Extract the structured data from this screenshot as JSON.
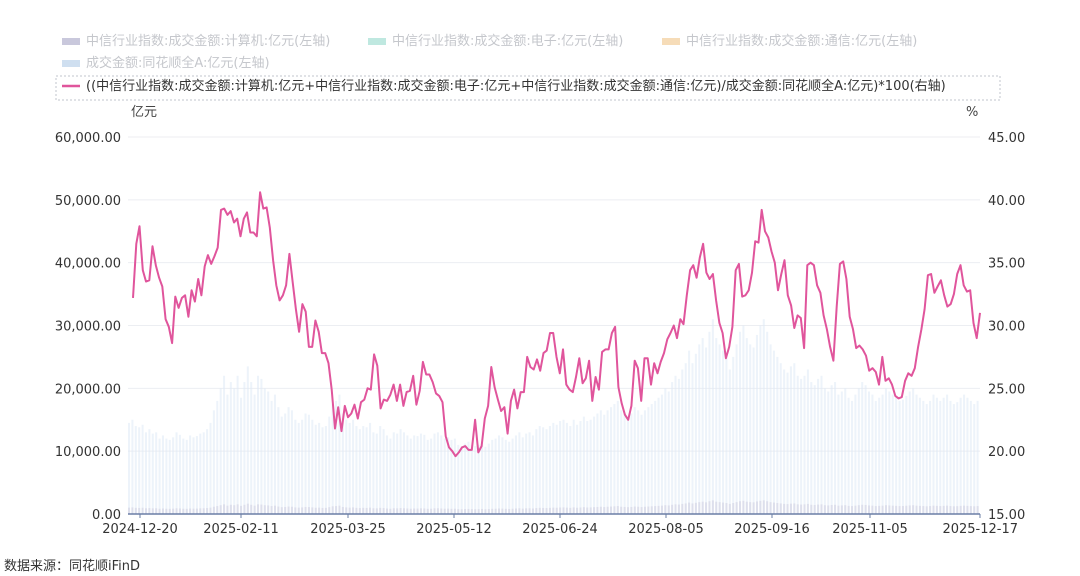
{
  "chart_data": {
    "type": "line",
    "legend": [
      {
        "label": "中信行业指数:成交金额:计算机:亿元(左轴)",
        "color": "#c9c8dc",
        "kind": "area",
        "axis": "left"
      },
      {
        "label": "中信行业指数:成交金额:电子:亿元(左轴)",
        "color": "#bfe8e0",
        "kind": "area",
        "axis": "left"
      },
      {
        "label": "中信行业指数:成交金额:通信:亿元(左轴)",
        "color": "#f6dcb8",
        "kind": "area",
        "axis": "left"
      },
      {
        "label": "成交金额:同花顺全A:亿元(左轴)",
        "color": "#cfdff0",
        "kind": "area",
        "axis": "left"
      },
      {
        "label": "((中信行业指数:成交金额:计算机:亿元+中信行业指数:成交金额:电子:亿元+中信行业指数:成交金额:通信:亿元)/成交金额:同花顺全A:亿元)*100(右轴)",
        "color": "#e0559c",
        "kind": "line",
        "axis": "right"
      }
    ],
    "left_unit": "亿元",
    "right_unit": "%",
    "left_ticks": [
      "0.00",
      "10,000.00",
      "20,000.00",
      "30,000.00",
      "40,000.00",
      "50,000.00",
      "60,000.00"
    ],
    "right_ticks": [
      "15.00",
      "20.00",
      "25.00",
      "30.00",
      "35.00",
      "40.00",
      "45.00"
    ],
    "ylim_left": [
      0,
      60000
    ],
    "ylim_right": [
      15,
      45
    ],
    "x_ticks": [
      "2024-12-20",
      "2025-02-11",
      "2025-03-25",
      "2025-05-12",
      "2025-06-24",
      "2025-08-05",
      "2025-09-16",
      "2025-11-05",
      "2025-12-17"
    ],
    "grid": true,
    "legend_position": "top-left",
    "ratio_series": {
      "name": "((中信行业指数:成交金额:计算机:亿元+中信行业指数:成交金额:电子:亿元+中信行业指数:成交金额:通信:亿元)/成交金额:同花顺全A:亿元)*100(右轴)",
      "values": [
        32.2,
        36.5,
        37.9,
        34.4,
        33.5,
        33.6,
        36.3,
        34.8,
        33.8,
        33.1,
        30.5,
        29.9,
        28.6,
        32.3,
        31.4,
        32.2,
        32.4,
        30.7,
        32.8,
        31.9,
        33.7,
        32.4,
        34.7,
        35.6,
        34.9,
        35.5,
        36.2,
        39.2,
        39.3,
        38.8,
        39.1,
        38.2,
        38.5,
        37.1,
        38.5,
        39.0,
        37.4,
        37.4,
        37.1,
        40.6,
        39.3,
        39.4,
        37.8,
        35.2,
        33.2,
        32.0,
        32.4,
        33.2,
        35.7,
        33.5,
        31.3,
        29.5,
        31.7,
        31.1,
        28.3,
        28.3,
        30.4,
        29.5,
        27.8,
        27.8,
        27.0,
        24.9,
        21.8,
        23.5,
        21.6,
        23.6,
        22.7,
        23.0,
        23.7,
        22.6,
        23.9,
        24.1,
        25.0,
        24.9,
        27.7,
        26.8,
        23.4,
        24.1,
        24.0,
        24.5,
        25.3,
        24.0,
        25.3,
        23.6,
        24.7,
        24.8,
        26.0,
        23.7,
        24.8,
        27.1,
        26.1,
        26.1,
        25.5,
        24.6,
        24.4,
        23.9,
        21.2,
        20.3,
        20.0,
        19.6,
        19.9,
        20.3,
        20.4,
        20.1,
        20.1,
        22.5,
        19.9,
        20.4,
        22.6,
        23.6,
        26.7,
        25.1,
        24.1,
        23.2,
        23.5,
        21.4,
        24.0,
        24.9,
        23.4,
        24.7,
        24.7,
        27.5,
        26.7,
        26.5,
        27.3,
        26.4,
        27.8,
        28.0,
        29.4,
        29.4,
        27.5,
        26.2,
        28.1,
        25.3,
        24.9,
        24.7,
        25.9,
        27.4,
        25.4,
        25.8,
        27.2,
        24.0,
        25.9,
        24.9,
        27.9,
        28.1,
        28.1,
        29.4,
        29.9,
        25.1,
        23.8,
        22.9,
        22.5,
        23.6,
        27.2,
        26.6,
        24.0,
        27.4,
        27.4,
        25.3,
        27.0,
        26.2,
        27.1,
        27.8,
        28.9,
        29.4,
        30.0,
        29.0,
        30.5,
        30.1,
        32.4,
        34.4,
        34.8,
        33.8,
        35.4,
        36.5,
        34.2,
        33.7,
        34.1,
        32.0,
        30.2,
        29.4,
        27.4,
        28.3,
        29.9,
        34.4,
        34.9,
        32.3,
        32.4,
        32.8,
        34.2,
        36.7,
        36.6,
        39.2,
        37.5,
        37.0,
        35.9,
        35.0,
        32.8,
        34.1,
        35.2,
        32.4,
        31.6,
        29.8,
        30.8,
        30.6,
        28.2,
        34.8,
        35.0,
        34.8,
        33.2,
        32.6,
        30.8,
        29.7,
        28.3,
        27.2,
        31.5,
        34.9,
        35.1,
        33.7,
        30.7,
        29.7,
        28.2,
        28.4,
        28.1,
        27.6,
        26.4,
        26.6,
        26.3,
        25.3,
        27.5,
        25.6,
        25.8,
        25.3,
        24.4,
        24.2,
        24.3,
        25.6,
        26.2,
        26.0,
        26.6,
        28.3,
        29.7,
        31.3,
        34.0,
        34.1,
        32.6,
        33.1,
        33.6,
        32.4,
        31.5,
        31.7,
        32.5,
        34.1,
        34.8,
        33.2,
        32.7,
        32.8,
        30.2,
        29.0,
        31.0
      ]
    },
    "total_series_left": {
      "name": "成交金额:同花顺全A:亿元(左轴)",
      "values": [
        14500,
        15000,
        14000,
        13800,
        14200,
        13000,
        13500,
        12800,
        13000,
        12000,
        12500,
        12000,
        11800,
        12200,
        13000,
        12600,
        12000,
        11800,
        12500,
        12200,
        12400,
        12800,
        13000,
        13500,
        14500,
        16500,
        18000,
        20000,
        22000,
        19000,
        21000,
        20000,
        22000,
        18500,
        21000,
        23500,
        21000,
        19000,
        22000,
        21500,
        20000,
        19500,
        18000,
        19000,
        17000,
        15500,
        16000,
        17000,
        16500,
        15000,
        14500,
        15000,
        16000,
        15800,
        15000,
        14200,
        14500,
        13800,
        14000,
        15500,
        17500,
        18000,
        19000,
        16000,
        15000,
        14500,
        15000,
        14000,
        13500,
        14000,
        13800,
        14500,
        13000,
        12800,
        14000,
        13500,
        12500,
        12000,
        13000,
        12800,
        13500,
        13000,
        12500,
        12000,
        12500,
        12400,
        12800,
        12600,
        11800,
        12000,
        12800,
        13000,
        12500,
        12000,
        12200,
        11800,
        12000,
        11000,
        10800,
        11200,
        11500,
        11000,
        10800,
        11000,
        11500,
        10700,
        11200,
        11800,
        12000,
        12500,
        12200,
        11800,
        11500,
        12000,
        12500,
        13000,
        12200,
        12800,
        13000,
        12500,
        13500,
        14000,
        13800,
        13500,
        14000,
        14500,
        14200,
        14800,
        15000,
        14500,
        14000,
        15000,
        14200,
        14800,
        15500,
        14800,
        15000,
        15500,
        16000,
        16500,
        15800,
        16500,
        17000,
        17500,
        18000,
        16500,
        16000,
        15500,
        16000,
        17000,
        16500,
        15800,
        16500,
        17000,
        17500,
        18000,
        18500,
        19000,
        20000,
        19500,
        21000,
        22000,
        21500,
        23000,
        24000,
        26000,
        24000,
        25500,
        27000,
        28000,
        26500,
        29000,
        31000,
        28000,
        27000,
        26000,
        25000,
        23000,
        25000,
        27000,
        29000,
        30000,
        28000,
        27000,
        26500,
        28500,
        30000,
        31000,
        29000,
        27000,
        26000,
        25000,
        24000,
        23000,
        22500,
        23500,
        24000,
        22000,
        21500,
        22000,
        23000,
        21000,
        20500,
        21500,
        22000,
        20000,
        19500,
        20500,
        21000,
        19000,
        19500,
        20000,
        18500,
        18000,
        19000,
        20000,
        21000,
        20500,
        19500,
        19000,
        18000,
        18500,
        19000,
        20000,
        19500,
        19000,
        18500,
        18000,
        18200,
        18800,
        19500,
        20000,
        19000,
        18500,
        18000,
        17500,
        18000,
        19000,
        18500,
        18000,
        18500,
        19000,
        18000,
        17500,
        17800,
        18500,
        19000,
        18500,
        18000,
        17500,
        18000
      ]
    }
  },
  "source_label": "数据来源：同花顺iFinD"
}
